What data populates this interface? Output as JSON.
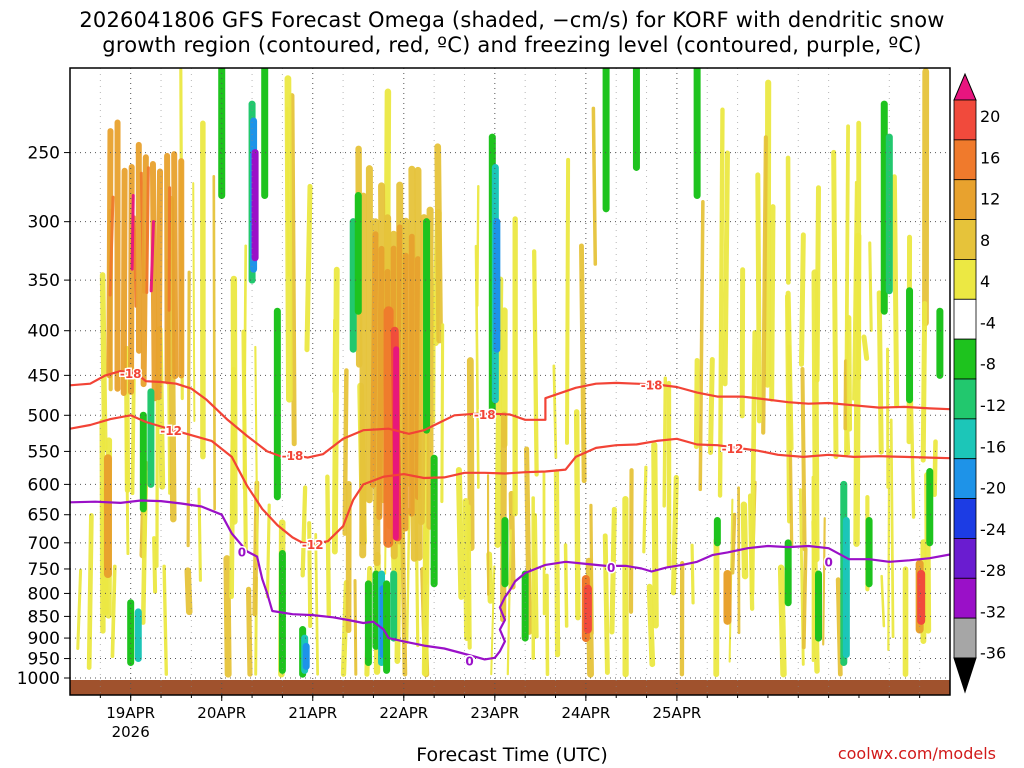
{
  "chart_data": {
    "type": "heatmap",
    "title_line1": "2026041806 GFS Forecast Omega (shaded, −cm/s) for KORF with dendritic snow",
    "title_line2": "growth region (contoured, red, ºC) and freezing level (contoured, purple, ºC)",
    "xlabel": "Forecast Time (UTC)",
    "ylabel": "",
    "watermark": "coolwx.com/models",
    "x_unit": "hours since 2026041806",
    "xlim": [
      0,
      174
    ],
    "x_ticks": [
      {
        "label": "19APR",
        "sub": "2026",
        "x": 12
      },
      {
        "label": "20APR",
        "sub": "",
        "x": 30
      },
      {
        "label": "21APR",
        "sub": "",
        "x": 48
      },
      {
        "label": "22APR",
        "sub": "",
        "x": 66
      },
      {
        "label": "23APR",
        "sub": "",
        "x": 84
      },
      {
        "label": "24APR",
        "sub": "",
        "x": 102
      },
      {
        "label": "25APR",
        "sub": "",
        "x": 120
      }
    ],
    "y_ticks": [
      {
        "label": "250",
        "p": 250
      },
      {
        "label": "300",
        "p": 300
      },
      {
        "label": "350",
        "p": 350
      },
      {
        "label": "400",
        "p": 400
      },
      {
        "label": "450",
        "p": 450
      },
      {
        "label": "500",
        "p": 500
      },
      {
        "label": "550",
        "p": 550
      },
      {
        "label": "600",
        "p": 600
      },
      {
        "label": "650",
        "p": 650
      },
      {
        "label": "700",
        "p": 700
      },
      {
        "label": "750",
        "p": 750
      },
      {
        "label": "800",
        "p": 800
      },
      {
        "label": "850",
        "p": 850
      },
      {
        "label": "900",
        "p": 900
      },
      {
        "label": "950",
        "p": 950
      },
      {
        "label": "1000",
        "p": 1000
      }
    ],
    "colorbar": {
      "labels": [
        "20",
        "16",
        "12",
        "8",
        "4",
        "-4",
        "-8",
        "-12",
        "-16",
        "-20",
        "-24",
        "-28",
        "-32",
        "-36"
      ],
      "colors": [
        "#e8157f",
        "#f14a3c",
        "#f07a2c",
        "#e8a22e",
        "#e6c33a",
        "#ece843",
        "#ffffff",
        "#1ec31e",
        "#22c86e",
        "#1cc6b8",
        "#1e93e8",
        "#1c3ce4",
        "#6a1cd0",
        "#9a10c8",
        "#a6a6a6",
        "#000000"
      ]
    },
    "contour_series": [
      {
        "name": "-18",
        "color": "#f24336",
        "label": "-18",
        "points": [
          [
            0,
            462
          ],
          [
            4,
            460
          ],
          [
            7,
            450
          ],
          [
            10,
            445
          ],
          [
            13,
            447
          ],
          [
            15,
            457
          ],
          [
            18,
            458
          ],
          [
            21,
            460
          ],
          [
            24,
            466
          ],
          [
            27,
            480
          ],
          [
            31,
            505
          ],
          [
            35,
            528
          ],
          [
            39,
            550
          ],
          [
            42,
            558
          ],
          [
            44,
            555
          ],
          [
            47,
            559
          ],
          [
            50,
            554
          ],
          [
            54,
            532
          ],
          [
            58,
            520
          ],
          [
            63,
            518
          ],
          [
            67,
            525
          ],
          [
            70,
            520
          ],
          [
            73,
            510
          ],
          [
            76,
            500
          ],
          [
            80,
            498
          ],
          [
            84,
            498
          ],
          [
            87,
            499
          ],
          [
            90,
            506
          ],
          [
            94,
            506
          ],
          [
            94,
            478
          ],
          [
            100,
            465
          ],
          [
            104,
            460
          ],
          [
            108,
            459
          ],
          [
            112,
            460
          ],
          [
            116,
            461
          ],
          [
            120,
            464
          ],
          [
            124,
            471
          ],
          [
            128,
            476
          ],
          [
            133,
            476
          ],
          [
            137,
            479
          ],
          [
            142,
            483
          ],
          [
            146,
            485
          ],
          [
            150,
            484
          ],
          [
            155,
            487
          ],
          [
            160,
            490
          ],
          [
            165,
            489
          ],
          [
            170,
            491
          ],
          [
            174,
            492
          ]
        ],
        "label_at": [
          [
            12,
            447
          ],
          [
            44,
            555
          ],
          [
            82,
            498
          ],
          [
            115,
            461
          ]
        ]
      },
      {
        "name": "-12",
        "color": "#f24336",
        "label": "-12",
        "points": [
          [
            0,
            518
          ],
          [
            4,
            513
          ],
          [
            8,
            505
          ],
          [
            12,
            500
          ],
          [
            15,
            509
          ],
          [
            18,
            515
          ],
          [
            21,
            521
          ],
          [
            24,
            527
          ],
          [
            28,
            535
          ],
          [
            32,
            558
          ],
          [
            35,
            602
          ],
          [
            38,
            640
          ],
          [
            41,
            668
          ],
          [
            44,
            690
          ],
          [
            46,
            700
          ],
          [
            48,
            702
          ],
          [
            51,
            697
          ],
          [
            54,
            670
          ],
          [
            56,
            625
          ],
          [
            58,
            600
          ],
          [
            62,
            588
          ],
          [
            66,
            584
          ],
          [
            70,
            590
          ],
          [
            74,
            589
          ],
          [
            78,
            582
          ],
          [
            82,
            582
          ],
          [
            86,
            583
          ],
          [
            90,
            581
          ],
          [
            94,
            580
          ],
          [
            98,
            577
          ],
          [
            100,
            558
          ],
          [
            104,
            545
          ],
          [
            108,
            541
          ],
          [
            112,
            540
          ],
          [
            116,
            535
          ],
          [
            120,
            532
          ],
          [
            124,
            540
          ],
          [
            128,
            541
          ],
          [
            132,
            545
          ],
          [
            136,
            549
          ],
          [
            140,
            555
          ],
          [
            145,
            558
          ],
          [
            150,
            555
          ],
          [
            155,
            558
          ],
          [
            160,
            557
          ],
          [
            165,
            558
          ],
          [
            170,
            559
          ],
          [
            174,
            560
          ]
        ],
        "label_at": [
          [
            20,
            520
          ],
          [
            48,
            702
          ],
          [
            131,
            545
          ]
        ]
      },
      {
        "name": "0",
        "color": "#9a10c8",
        "label": "0",
        "points": [
          [
            0,
            629
          ],
          [
            5,
            628
          ],
          [
            10,
            630
          ],
          [
            14,
            626
          ],
          [
            18,
            627
          ],
          [
            22,
            631
          ],
          [
            26,
            636
          ],
          [
            30,
            650
          ],
          [
            32,
            683
          ],
          [
            35,
            716
          ],
          [
            37,
            726
          ],
          [
            38,
            770
          ],
          [
            39,
            800
          ],
          [
            40,
            838
          ],
          [
            44,
            845
          ],
          [
            48,
            847
          ],
          [
            52,
            852
          ],
          [
            55,
            858
          ],
          [
            58,
            865
          ],
          [
            60,
            862
          ],
          [
            62,
            880
          ],
          [
            63,
            900
          ],
          [
            66,
            908
          ],
          [
            70,
            918
          ],
          [
            74,
            925
          ],
          [
            77,
            935
          ],
          [
            80,
            945
          ],
          [
            82,
            952
          ],
          [
            84,
            948
          ],
          [
            85,
            932
          ],
          [
            86,
            908
          ],
          [
            85,
            880
          ],
          [
            86,
            858
          ],
          [
            85,
            830
          ],
          [
            86,
            808
          ],
          [
            87,
            793
          ],
          [
            88,
            775
          ],
          [
            90,
            758
          ],
          [
            94,
            742
          ],
          [
            98,
            736
          ],
          [
            102,
            740
          ],
          [
            106,
            744
          ],
          [
            110,
            744
          ],
          [
            113,
            749
          ],
          [
            115,
            755
          ],
          [
            118,
            747
          ],
          [
            121,
            742
          ],
          [
            124,
            736
          ],
          [
            127,
            723
          ],
          [
            130,
            718
          ],
          [
            134,
            710
          ],
          [
            138,
            706
          ],
          [
            142,
            708
          ],
          [
            146,
            706
          ],
          [
            150,
            710
          ],
          [
            154,
            731
          ],
          [
            158,
            731
          ],
          [
            162,
            736
          ],
          [
            166,
            733
          ],
          [
            170,
            729
          ],
          [
            174,
            722
          ]
        ],
        "label_at": [
          [
            34,
            716
          ],
          [
            79,
            955
          ],
          [
            107,
            746
          ],
          [
            150,
            735
          ]
        ]
      }
    ],
    "shading_blobs": [
      {
        "x": [
          10,
          18
        ],
        "p": [
          300,
          440
        ],
        "c": "#e8a22e"
      },
      {
        "x": [
          11,
          13
        ],
        "p": [
          300,
          440
        ],
        "c": "#e8157f"
      },
      {
        "x": [
          38,
          40
        ],
        "p": [
          250,
          480
        ],
        "c": "#9a10c8"
      },
      {
        "x": [
          62,
          66
        ],
        "p": [
          320,
          720
        ],
        "c": "#e6c33a"
      },
      {
        "x": [
          62,
          66
        ],
        "p": [
          380,
          720
        ],
        "c": "#e8a22e"
      },
      {
        "x": [
          63,
          65
        ],
        "p": [
          380,
          710
        ],
        "c": "#f07a2c"
      },
      {
        "x": [
          63,
          65
        ],
        "p": [
          420,
          700
        ],
        "c": "#e8157f"
      },
      {
        "x": [
          86,
          88
        ],
        "p": [
          200,
          600
        ],
        "c": "#1e93e8"
      },
      {
        "x": [
          101,
          103
        ],
        "p": [
          760,
          960
        ],
        "c": "#f14a3c"
      }
    ]
  }
}
